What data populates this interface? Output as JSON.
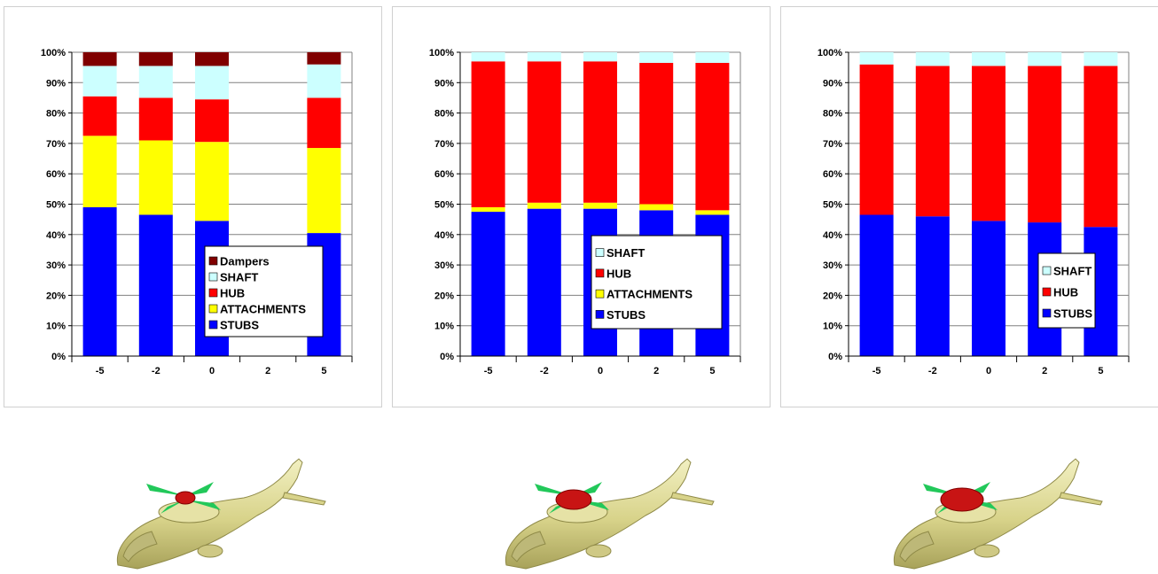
{
  "colors": {
    "Dampers": "#800000",
    "SHAFT": "#ccffff",
    "HUB": "#ff0000",
    "ATTACHMENTS": "#ffff00",
    "STUBS": "#0000ff"
  },
  "chart_data": [
    {
      "type": "bar",
      "stacked": true,
      "title": "",
      "xlabel": "",
      "ylabel": "",
      "categories": [
        "-5",
        "-2",
        "0",
        "2",
        "5"
      ],
      "yticks": [
        "0%",
        "10%",
        "20%",
        "30%",
        "40%",
        "50%",
        "60%",
        "70%",
        "80%",
        "90%",
        "100%"
      ],
      "ylim": [
        0,
        100
      ],
      "grid": true,
      "legend_order": [
        "Dampers",
        "SHAFT",
        "HUB",
        "ATTACHMENTS",
        "STUBS"
      ],
      "series": [
        {
          "name": "STUBS",
          "values": [
            49,
            46.5,
            44.5,
            null,
            40.5
          ]
        },
        {
          "name": "ATTACHMENTS",
          "values": [
            23.5,
            24.5,
            26,
            null,
            28
          ]
        },
        {
          "name": "HUB",
          "values": [
            13,
            14,
            14,
            null,
            16.5
          ]
        },
        {
          "name": "SHAFT",
          "values": [
            10,
            10.5,
            11,
            null,
            11
          ]
        },
        {
          "name": "Dampers",
          "values": [
            4.5,
            4.5,
            4.5,
            null,
            4
          ]
        }
      ]
    },
    {
      "type": "bar",
      "stacked": true,
      "title": "",
      "xlabel": "",
      "ylabel": "",
      "categories": [
        "-5",
        "-2",
        "0",
        "2",
        "5"
      ],
      "yticks": [
        "0%",
        "10%",
        "20%",
        "30%",
        "40%",
        "50%",
        "60%",
        "70%",
        "80%",
        "90%",
        "100%"
      ],
      "ylim": [
        0,
        100
      ],
      "grid": true,
      "legend_order": [
        "SHAFT",
        "HUB",
        "ATTACHMENTS",
        "STUBS"
      ],
      "series": [
        {
          "name": "STUBS",
          "values": [
            47.5,
            48.5,
            48.5,
            48,
            46.5
          ]
        },
        {
          "name": "ATTACHMENTS",
          "values": [
            1.5,
            2,
            2,
            2,
            1.5
          ]
        },
        {
          "name": "HUB",
          "values": [
            48,
            46.5,
            46.5,
            46.5,
            48.5
          ]
        },
        {
          "name": "SHAFT",
          "values": [
            3,
            3,
            3,
            3.5,
            3.5
          ]
        }
      ]
    },
    {
      "type": "bar",
      "stacked": true,
      "title": "",
      "xlabel": "",
      "ylabel": "",
      "categories": [
        "-5",
        "-2",
        "0",
        "2",
        "5"
      ],
      "yticks": [
        "0%",
        "10%",
        "20%",
        "30%",
        "40%",
        "50%",
        "60%",
        "70%",
        "80%",
        "90%",
        "100%"
      ],
      "ylim": [
        0,
        100
      ],
      "grid": true,
      "legend_order": [
        "SHAFT",
        "HUB",
        "STUBS"
      ],
      "series": [
        {
          "name": "STUBS",
          "values": [
            46.5,
            46,
            44.5,
            44,
            42.5
          ]
        },
        {
          "name": "HUB",
          "values": [
            49.5,
            49.5,
            51,
            51.5,
            53
          ]
        },
        {
          "name": "SHAFT",
          "values": [
            4,
            4.5,
            4.5,
            4.5,
            4.5
          ]
        }
      ]
    }
  ],
  "helicopters": [
    {
      "rotor_hub": "small-hub",
      "hub_color": "#c81414"
    },
    {
      "rotor_hub": "medium-hub",
      "hub_color": "#c81414"
    },
    {
      "rotor_hub": "large-hub",
      "hub_color": "#c81414"
    }
  ]
}
